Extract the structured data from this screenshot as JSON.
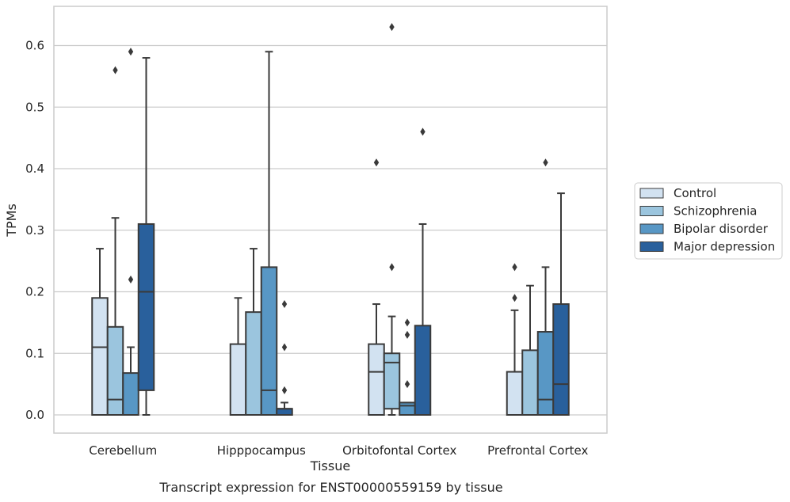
{
  "caption": "Transcript expression for ENST00000559159 by tissue",
  "chart_data": {
    "type": "boxplot",
    "xlabel": "Tissue",
    "ylabel": "TPMs",
    "ylim": [
      -0.03,
      0.66
    ],
    "yticks": [
      0.0,
      0.1,
      0.2,
      0.3,
      0.4,
      0.5,
      0.6
    ],
    "ytick_labels": [
      "0.0",
      "0.1",
      "0.2",
      "0.3",
      "0.4",
      "0.5",
      "0.6"
    ],
    "grid": "horizontal",
    "legend_placement": "right",
    "categories": [
      "Cerebellum",
      "Hipppocampus",
      "Orbitofontal Cortex",
      "Prefrontal Cortex"
    ],
    "series": [
      {
        "name": "Control",
        "color": "#d2e2f1",
        "boxes": [
          {
            "whislo": 0.0,
            "q1": 0.0,
            "med": 0.11,
            "q3": 0.19,
            "whishi": 0.27,
            "fliers": []
          },
          {
            "whislo": 0.0,
            "q1": 0.0,
            "med": 0.0,
            "q3": 0.115,
            "whishi": 0.19,
            "fliers": []
          },
          {
            "whislo": 0.0,
            "q1": 0.0,
            "med": 0.07,
            "q3": 0.115,
            "whishi": 0.18,
            "fliers": [
              0.41
            ]
          },
          {
            "whislo": 0.0,
            "q1": 0.0,
            "med": 0.0,
            "q3": 0.07,
            "whishi": 0.17,
            "fliers": [
              0.19,
              0.24
            ]
          }
        ]
      },
      {
        "name": "Schizophrenia",
        "color": "#9bc5de",
        "boxes": [
          {
            "whislo": 0.0,
            "q1": 0.0,
            "med": 0.025,
            "q3": 0.143,
            "whishi": 0.32,
            "fliers": [
              0.56
            ]
          },
          {
            "whislo": 0.0,
            "q1": 0.0,
            "med": 0.0,
            "q3": 0.167,
            "whishi": 0.27,
            "fliers": []
          },
          {
            "whislo": 0.0,
            "q1": 0.01,
            "med": 0.085,
            "q3": 0.1,
            "whishi": 0.16,
            "fliers": [
              0.24,
              0.63
            ]
          },
          {
            "whislo": 0.0,
            "q1": 0.0,
            "med": 0.0,
            "q3": 0.105,
            "whishi": 0.21,
            "fliers": []
          }
        ]
      },
      {
        "name": "Bipolar disorder",
        "color": "#5897c5",
        "boxes": [
          {
            "whislo": 0.0,
            "q1": 0.0,
            "med": 0.0,
            "q3": 0.068,
            "whishi": 0.11,
            "fliers": [
              0.22,
              0.59
            ]
          },
          {
            "whislo": 0.0,
            "q1": 0.0,
            "med": 0.04,
            "q3": 0.24,
            "whishi": 0.59,
            "fliers": []
          },
          {
            "whislo": 0.0,
            "q1": 0.0,
            "med": 0.015,
            "q3": 0.02,
            "whishi": 0.02,
            "fliers": [
              0.05,
              0.13,
              0.15
            ]
          },
          {
            "whislo": 0.0,
            "q1": 0.0,
            "med": 0.025,
            "q3": 0.135,
            "whishi": 0.24,
            "fliers": [
              0.41
            ]
          }
        ]
      },
      {
        "name": "Major depression",
        "color": "#29609c",
        "boxes": [
          {
            "whislo": 0.0,
            "q1": 0.04,
            "med": 0.2,
            "q3": 0.31,
            "whishi": 0.58,
            "fliers": []
          },
          {
            "whislo": 0.0,
            "q1": 0.0,
            "med": 0.01,
            "q3": 0.01,
            "whishi": 0.02,
            "fliers": [
              0.04,
              0.11,
              0.18
            ]
          },
          {
            "whislo": 0.0,
            "q1": 0.0,
            "med": 0.0,
            "q3": 0.145,
            "whishi": 0.31,
            "fliers": [
              0.46
            ]
          },
          {
            "whislo": 0.0,
            "q1": 0.0,
            "med": 0.05,
            "q3": 0.18,
            "whishi": 0.36,
            "fliers": []
          }
        ]
      }
    ]
  }
}
